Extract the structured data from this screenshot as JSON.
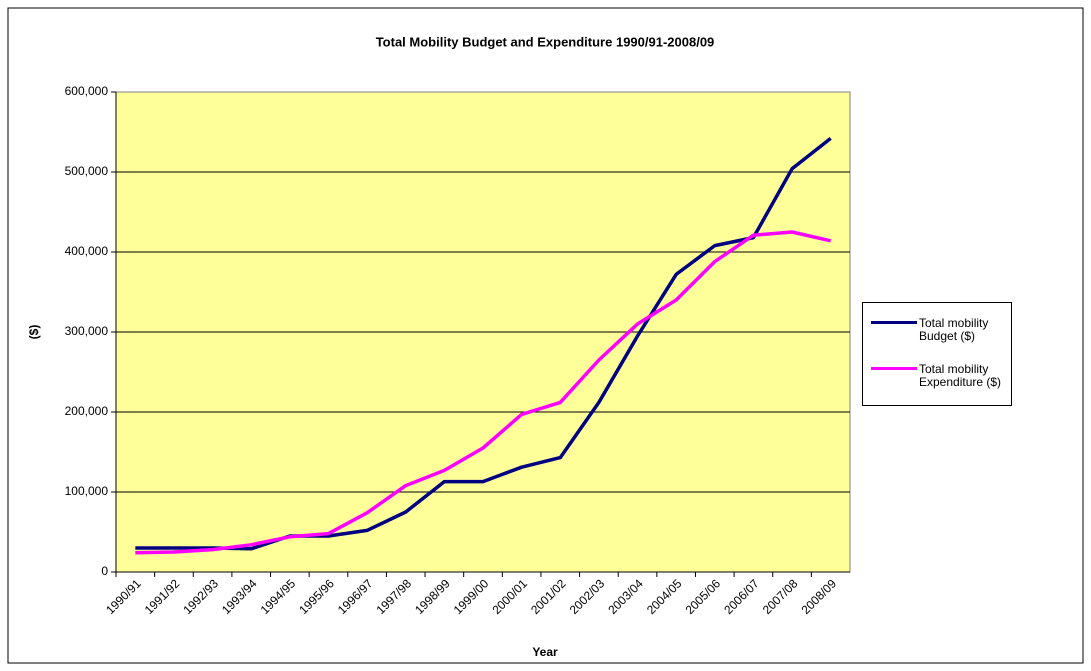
{
  "chart_data": {
    "type": "line",
    "title": "Total Mobility Budget and Expenditure 1990/91-2008/09",
    "x_label": "Year",
    "y_label": "($)",
    "categories": [
      "1990/91",
      "1991/92",
      "1992/93",
      "1993/94",
      "1994/95",
      "1995/96",
      "1996/97",
      "1997/98",
      "1998/99",
      "1999/00",
      "2000/01",
      "2001/02",
      "2002/03",
      "2003/04",
      "2004/05",
      "2005/06",
      "2006/07",
      "2007/08",
      "2008/09"
    ],
    "series": [
      {
        "name": "Total mobility Budget ($)",
        "color": "#000080",
        "values": [
          30000,
          30000,
          30000,
          29000,
          45000,
          45000,
          52000,
          75000,
          113000,
          113000,
          131000,
          143000,
          212000,
          295000,
          372000,
          408000,
          418000,
          504000,
          542000
        ]
      },
      {
        "name": "Total mobility Expenditure ($)",
        "color": "#ff00ff",
        "values": [
          24000,
          25000,
          28000,
          34000,
          44000,
          48000,
          74000,
          108000,
          127000,
          155000,
          197000,
          212000,
          265000,
          310000,
          340000,
          388000,
          421000,
          425000,
          414000
        ]
      }
    ],
    "ylim": [
      0,
      600000
    ],
    "yticks": [
      0,
      {
        "value": 100000,
        "label": "100,000"
      },
      {
        "value": 200000,
        "label": "200,000"
      },
      {
        "value": 300000,
        "label": "300,000"
      },
      {
        "value": 400000,
        "label": "400,000"
      },
      {
        "value": 500000,
        "label": "500,000"
      },
      {
        "value": 600000,
        "label": "600,000"
      }
    ],
    "grid": true,
    "legend": "right",
    "background": "#ffff99"
  }
}
